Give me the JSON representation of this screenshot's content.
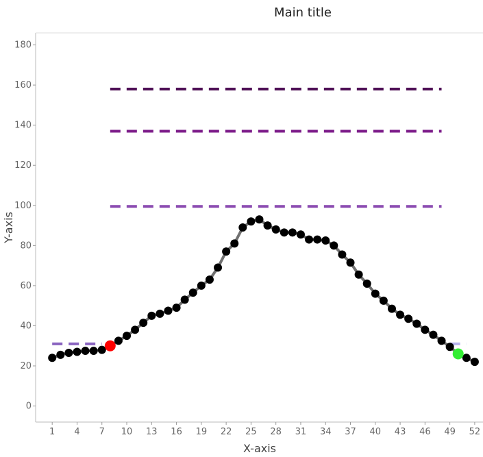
{
  "chart_data": {
    "type": "line",
    "title": "Main title",
    "xlabel": "X-axis",
    "ylabel": "Y-axis",
    "xlim": [
      -1,
      53
    ],
    "ylim": [
      -8,
      186
    ],
    "x_ticks": [
      1,
      4,
      7,
      10,
      13,
      16,
      19,
      22,
      25,
      28,
      31,
      34,
      37,
      40,
      43,
      46,
      49,
      52
    ],
    "x_tick_labels": [
      "1",
      "4",
      "7",
      "10",
      "13",
      "16",
      "19",
      "22",
      "25",
      "28",
      "31",
      "34",
      "37",
      "40",
      "43",
      "46",
      "49",
      "52"
    ],
    "y_ticks": [
      0,
      20,
      40,
      60,
      80,
      100,
      120,
      140,
      160,
      180
    ],
    "grid": false,
    "series": [
      {
        "color": "#000000",
        "line_color": "#707070",
        "x": [
          1,
          2,
          3,
          4,
          5,
          6,
          7,
          8,
          9,
          10,
          11,
          12,
          13,
          14,
          15,
          16,
          17,
          18,
          19,
          20,
          21,
          22,
          23,
          24,
          25,
          26,
          27,
          28,
          29,
          30,
          31,
          32,
          33,
          34,
          35,
          36,
          37,
          38,
          39,
          40,
          41,
          42,
          43,
          44,
          45,
          46,
          47,
          48,
          49,
          50,
          51,
          52
        ],
        "y": [
          24,
          25.5,
          26.5,
          27,
          27.5,
          27.5,
          28,
          30,
          32.5,
          35,
          38,
          41.5,
          45,
          46,
          47.5,
          49,
          53,
          56.5,
          60,
          63,
          69,
          77,
          81,
          89,
          92,
          93,
          90,
          88,
          86.5,
          86.5,
          85.5,
          83,
          83,
          82.5,
          80,
          75.5,
          71.5,
          65.5,
          61,
          56,
          52.5,
          48.5,
          45.5,
          43.5,
          41,
          38,
          35.5,
          32.5,
          29.5,
          26,
          24,
          22
        ]
      }
    ],
    "highlights": [
      {
        "x": 8,
        "y": 30,
        "color": "#ff0000"
      },
      {
        "x": 50,
        "y": 26,
        "color": "#33ee33"
      }
    ],
    "reference_lines": [
      {
        "y": 158,
        "x_range": [
          8,
          48
        ],
        "color": "#4e0f55"
      },
      {
        "y": 137,
        "x_range": [
          8,
          48
        ],
        "color": "#7d1d8a"
      },
      {
        "y": 99.5,
        "x_range": [
          8,
          48
        ],
        "color": "#8a4ab0"
      },
      {
        "y": 31,
        "x_range": [
          1,
          7
        ],
        "color": "#8a63c0"
      },
      {
        "y": 31,
        "x_range": [
          49,
          51
        ],
        "color": "#b7b3ee"
      }
    ]
  }
}
